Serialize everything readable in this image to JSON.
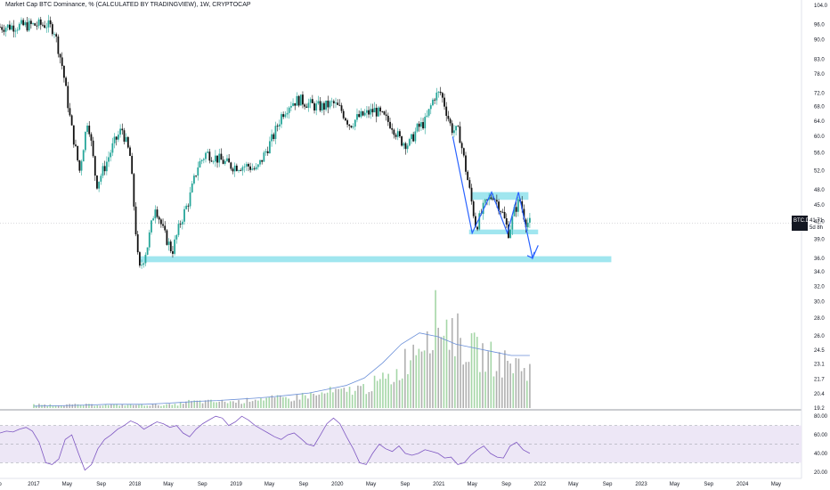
{
  "header": {
    "title": "Market Cap BTC Dominance, % (CALCULATED BY TRADINGVIEW), 1W, CRYPTOCAP"
  },
  "price_tag": {
    "symbol": "BTC.D",
    "value": "41.71",
    "countdown": "5d 8h"
  },
  "colors": {
    "up": "#26a69a",
    "down": "#111111",
    "zone": "#80deea",
    "arrow": "#2962ff",
    "volume_up": "#a5d6a7",
    "volume_down": "#b0b0b0",
    "volume_ma": "#6a8fd8",
    "rsi_line": "#7e57c2",
    "rsi_band": "#ede7f6"
  },
  "chart_data": [
    {
      "type": "candlestick",
      "title": "Market Cap BTC Dominance, % (CALCULATED BY TRADINGVIEW), 1W, CRYPTOCAP",
      "y_ticks": [
        104.0,
        96.0,
        90.0,
        83.0,
        78.0,
        72.0,
        68.0,
        64.0,
        60.0,
        56.0,
        52.0,
        48.0,
        45.0,
        42.0,
        39.0,
        36.0,
        34.0,
        32.0,
        30.0,
        28.0,
        26.0,
        24.5,
        23.1,
        21.7,
        20.4,
        19.2
      ],
      "x_ticks": [
        "p",
        "2017",
        "May",
        "Sep",
        "2018",
        "May",
        "Sep",
        "2019",
        "May",
        "Sep",
        "2020",
        "May",
        "Sep",
        "2021",
        "May",
        "Sep",
        "2022",
        "May",
        "Sep",
        "2023",
        "May",
        "Sep",
        "2024",
        "May"
      ],
      "x_tick_dates": [
        "2016-09-01",
        "2017-01-01",
        "2017-05-01",
        "2017-09-01",
        "2018-01-01",
        "2018-05-01",
        "2018-09-01",
        "2019-01-01",
        "2019-05-01",
        "2019-09-01",
        "2020-01-01",
        "2020-05-01",
        "2020-09-01",
        "2021-01-01",
        "2021-05-01",
        "2021-09-01",
        "2022-01-01",
        "2022-05-01",
        "2022-09-01",
        "2023-01-01",
        "2023-05-01",
        "2023-09-01",
        "2024-01-01",
        "2024-05-01"
      ],
      "scale": "log",
      "ylim": [
        19.2,
        104.0
      ],
      "current_value": 41.71,
      "path": [
        [
          "2016-09-01",
          95
        ],
        [
          "2017-02-15",
          96
        ],
        [
          "2017-03-15",
          94
        ],
        [
          "2017-04-15",
          80
        ],
        [
          "2017-05-15",
          63
        ],
        [
          "2017-06-15",
          52
        ],
        [
          "2017-07-15",
          65
        ],
        [
          "2017-08-15",
          49
        ],
        [
          "2017-09-15",
          53
        ],
        [
          "2017-10-15",
          58
        ],
        [
          "2017-11-15",
          62
        ],
        [
          "2017-12-15",
          55
        ],
        [
          "2018-01-15",
          34
        ],
        [
          "2018-02-01",
          36
        ],
        [
          "2018-02-15",
          38
        ],
        [
          "2018-03-15",
          45
        ],
        [
          "2018-04-15",
          40
        ],
        [
          "2018-05-15",
          37
        ],
        [
          "2018-06-15",
          42
        ],
        [
          "2018-07-15",
          46
        ],
        [
          "2018-08-15",
          53
        ],
        [
          "2018-09-15",
          56
        ],
        [
          "2018-10-15",
          55
        ],
        [
          "2018-11-15",
          54
        ],
        [
          "2018-12-15",
          53
        ],
        [
          "2019-01-15",
          53
        ],
        [
          "2019-02-15",
          53
        ],
        [
          "2019-03-15",
          52
        ],
        [
          "2019-04-15",
          56
        ],
        [
          "2019-05-15",
          60
        ],
        [
          "2019-06-15",
          66
        ],
        [
          "2019-07-15",
          69
        ],
        [
          "2019-08-15",
          70
        ],
        [
          "2019-09-15",
          69
        ],
        [
          "2019-10-15",
          68
        ],
        [
          "2019-11-15",
          68
        ],
        [
          "2019-12-15",
          69
        ],
        [
          "2020-01-15",
          67
        ],
        [
          "2020-02-15",
          63
        ],
        [
          "2020-03-15",
          65
        ],
        [
          "2020-04-15",
          66
        ],
        [
          "2020-05-15",
          67
        ],
        [
          "2020-06-15",
          65
        ],
        [
          "2020-07-15",
          63
        ],
        [
          "2020-08-15",
          59
        ],
        [
          "2020-09-15",
          58
        ],
        [
          "2020-10-15",
          62
        ],
        [
          "2020-11-15",
          64
        ],
        [
          "2020-12-15",
          71
        ],
        [
          "2021-01-07",
          72
        ],
        [
          "2021-01-20",
          69
        ],
        [
          "2021-02-15",
          62
        ],
        [
          "2021-03-15",
          61
        ],
        [
          "2021-04-15",
          50
        ],
        [
          "2021-05-15",
          41
        ],
        [
          "2021-06-15",
          45
        ],
        [
          "2021-07-15",
          47
        ],
        [
          "2021-08-15",
          44
        ],
        [
          "2021-09-10",
          40
        ],
        [
          "2021-10-01",
          44
        ],
        [
          "2021-10-20",
          46
        ],
        [
          "2021-11-10",
          42
        ],
        [
          "2021-11-25",
          41.71
        ]
      ],
      "zones": [
        {
          "from": "2021-05-01",
          "to": "2021-11-20",
          "low": 46.0,
          "high": 47.5
        },
        {
          "from": "2021-04-20",
          "to": "2021-12-25",
          "low": 39.8,
          "high": 40.6
        },
        {
          "from": "2018-01-15",
          "to": "2022-09-15",
          "low": 35.4,
          "high": 36.3
        }
      ],
      "arrow_path": [
        [
          "2021-02-20",
          60
        ],
        [
          "2021-05-01",
          40
        ],
        [
          "2021-07-10",
          47.5
        ],
        [
          "2021-09-05",
          40
        ],
        [
          "2021-10-15",
          47.5
        ],
        [
          "2021-12-05",
          36
        ],
        [
          "2021-12-25",
          38
        ]
      ]
    },
    {
      "type": "bar",
      "title": "Volume",
      "series": [
        {
          "values": [
            1,
            1,
            1,
            1,
            1,
            1,
            1,
            1,
            1,
            1,
            1,
            1,
            1,
            1,
            1,
            1,
            1,
            1,
            2,
            2,
            2,
            2,
            2,
            2,
            2,
            2,
            3,
            3,
            3,
            3,
            3,
            3,
            4,
            4,
            4,
            5,
            5,
            5,
            6,
            6,
            7,
            8,
            9,
            10,
            14,
            18,
            22,
            26,
            28,
            26,
            24,
            20,
            18,
            17,
            16,
            15,
            14,
            14,
            13,
            12
          ]
        }
      ],
      "moving_average": [
        0.5,
        0.6,
        0.7,
        0.8,
        1,
        1,
        1,
        1.2,
        1.5,
        1.8,
        2,
        2.3,
        2.6,
        3,
        3.5,
        4,
        5,
        6,
        8,
        12,
        17,
        20,
        19,
        17,
        16,
        15,
        14,
        14
      ]
    },
    {
      "type": "line",
      "title": "RSI",
      "y_ticks": [
        80.0,
        60.0,
        40.0,
        20.0
      ],
      "ylim": [
        15,
        85
      ],
      "bands": [
        30,
        70
      ],
      "series": [
        {
          "values": [
            62,
            64,
            63,
            66,
            68,
            64,
            52,
            30,
            28,
            34,
            55,
            60,
            40,
            22,
            28,
            45,
            55,
            60,
            66,
            70,
            75,
            72,
            66,
            70,
            74,
            72,
            68,
            70,
            62,
            58,
            66,
            72,
            76,
            80,
            78,
            70,
            74,
            80,
            76,
            70,
            66,
            62,
            58,
            55,
            60,
            62,
            56,
            50,
            48,
            60,
            72,
            78,
            72,
            58,
            45,
            30,
            28,
            40,
            50,
            45,
            42,
            48,
            40,
            38,
            40,
            44,
            42,
            40,
            35,
            36,
            28,
            30,
            38,
            44,
            48,
            40,
            36,
            35,
            48,
            52,
            44,
            40
          ]
        }
      ]
    }
  ]
}
